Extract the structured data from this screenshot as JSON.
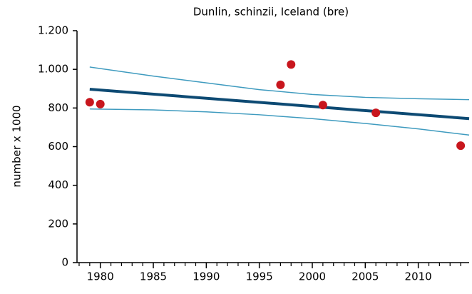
{
  "chart_data": {
    "type": "scatter",
    "title": "Dunlin, schinzii, Iceland (bre)",
    "ylabel": "number x 1000",
    "xlim": [
      1977.8,
      2014.8
    ],
    "ylim": [
      0,
      1200
    ],
    "xticks": [
      1980,
      1985,
      1990,
      1995,
      2000,
      2005,
      2010
    ],
    "xminorticks": [
      1978,
      1979,
      1981,
      1982,
      1983,
      1984,
      1986,
      1987,
      1988,
      1989,
      1991,
      1992,
      1993,
      1994,
      1996,
      1997,
      1998,
      1999,
      2001,
      2002,
      2003,
      2004,
      2006,
      2007,
      2008,
      2009,
      2011,
      2012,
      2013,
      2014
    ],
    "yticks": [
      0,
      200,
      400,
      600,
      800,
      {
        "value": 1000,
        "label": "1.000"
      },
      {
        "value": 1200,
        "label": "1.200"
      }
    ],
    "points": {
      "color": "#c8161d",
      "x": [
        1979,
        1980,
        1997,
        1998,
        2001,
        2006,
        2014
      ],
      "values": [
        830,
        820,
        920,
        1025,
        815,
        775,
        605
      ]
    },
    "lines": [
      {
        "color": "#0d4a73",
        "width": 4,
        "x": [
          1979,
          2014.8
        ],
        "values": [
          897,
          745
        ]
      },
      {
        "color": "#3f9bbf",
        "width": 1.5,
        "x": [
          1979,
          1985,
          1990,
          1995,
          2000,
          2005,
          2010,
          2014.8
        ],
        "values": [
          1012,
          965,
          930,
          895,
          870,
          855,
          848,
          843
        ]
      },
      {
        "color": "#3f9bbf",
        "width": 1.5,
        "x": [
          1979,
          1985,
          1990,
          1995,
          2000,
          2005,
          2010,
          2014.8
        ],
        "values": [
          795,
          790,
          780,
          765,
          745,
          720,
          692,
          660
        ]
      }
    ]
  }
}
